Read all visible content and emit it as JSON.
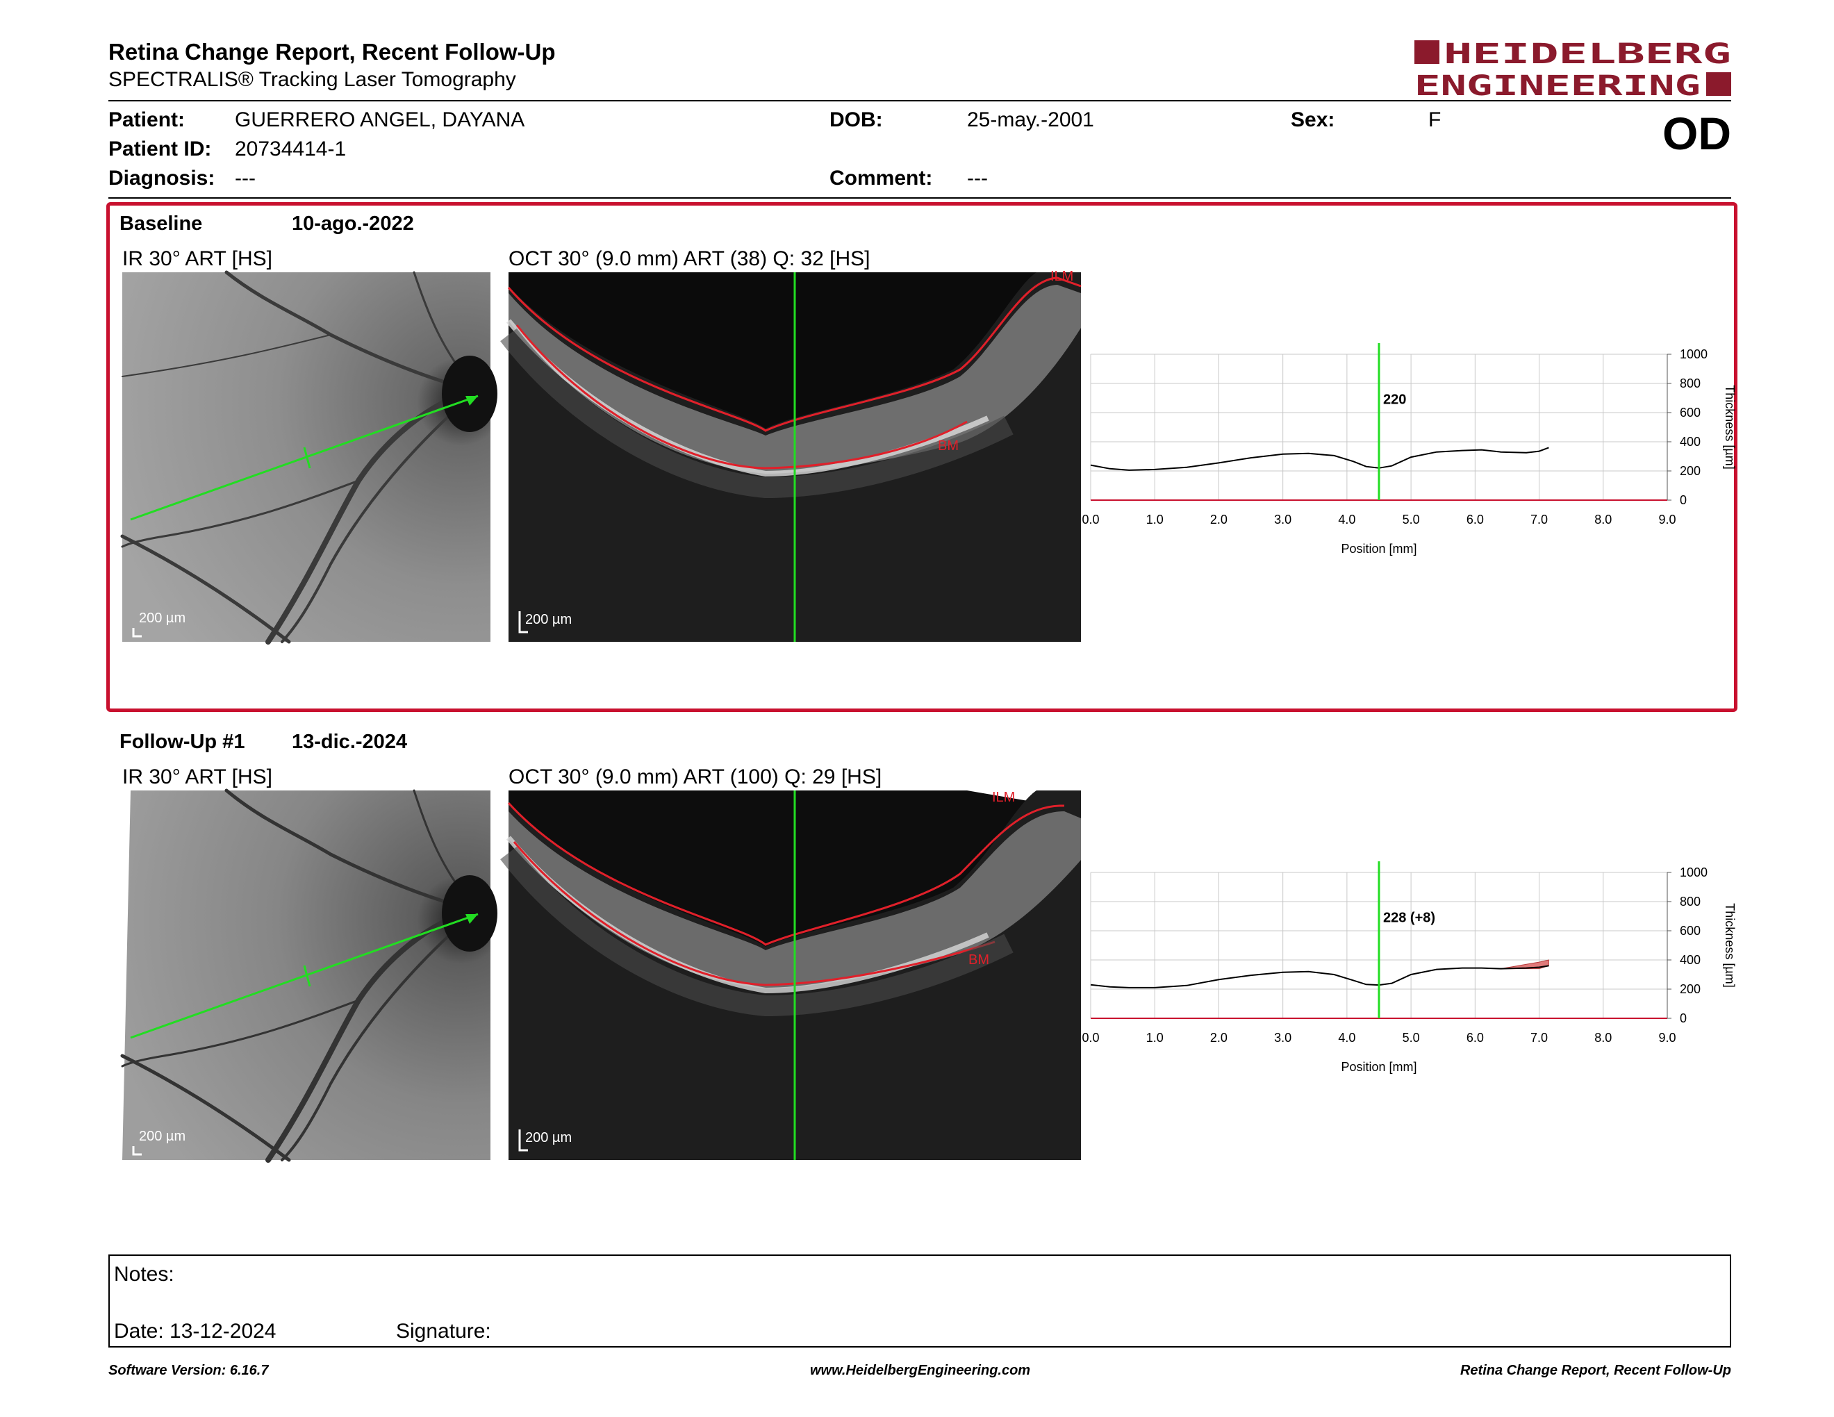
{
  "report": {
    "title": "Retina Change Report, Recent Follow-Up",
    "subtitle": "SPECTRALIS® Tracking Laser Tomography",
    "logo_line1": "HEIDELBERG",
    "logo_line2": "ENGINEERING",
    "logo_color": "#8b1a2c",
    "eye": "OD"
  },
  "patient": {
    "patient_label": "Patient:",
    "patient_value": "GUERRERO ANGEL, DAYANA",
    "id_label": "Patient ID:",
    "id_value": "20734414-1",
    "diagnosis_label": "Diagnosis:",
    "diagnosis_value": "---",
    "dob_label": "DOB:",
    "dob_value": "25-may.-2001",
    "comment_label": "Comment:",
    "comment_value": "---",
    "sex_label": "Sex:",
    "sex_value": "F"
  },
  "baseline": {
    "label": "Baseline",
    "date": "10-ago.-2022",
    "ir_caption": "IR 30° ART [HS]",
    "oct_caption": "OCT 30° (9.0 mm) ART (38) Q: 32 [HS]",
    "scale": "200 µm",
    "ilm": "ILM",
    "bm": "BM"
  },
  "followup": {
    "label": "Follow-Up #1",
    "date": "13-dic.-2024",
    "ir_caption": "IR 30° ART [HS]",
    "oct_caption": "OCT 30° (9.0 mm) ART (100) Q: 29 [HS]",
    "scale": "200 µm",
    "ilm": "ILM",
    "bm": "BM"
  },
  "colors": {
    "frame_red": "#c8102e",
    "scan_green": "#22dd22",
    "segment_red": "#e0202a"
  },
  "chart_data": [
    {
      "type": "line",
      "name": "baseline-thickness",
      "xlabel": "Position [mm]",
      "ylabel": "Thickness [µm]",
      "xlim": [
        0,
        9
      ],
      "ylim": [
        0,
        1000
      ],
      "x_ticks": [
        "0.0",
        "1.0",
        "2.0",
        "3.0",
        "4.0",
        "5.0",
        "6.0",
        "7.0",
        "8.0",
        "9.0"
      ],
      "y_ticks": [
        "0",
        "200",
        "400",
        "600",
        "800",
        "1000"
      ],
      "grid": true,
      "marker_x": 4.5,
      "marker_label": "220",
      "x": [
        0.0,
        0.3,
        0.6,
        1.0,
        1.5,
        2.0,
        2.5,
        3.0,
        3.4,
        3.8,
        4.1,
        4.3,
        4.5,
        4.7,
        5.0,
        5.4,
        5.8,
        6.1,
        6.4,
        6.8,
        7.0,
        7.15
      ],
      "y": [
        240,
        215,
        205,
        210,
        225,
        255,
        290,
        315,
        320,
        305,
        265,
        230,
        220,
        235,
        295,
        330,
        340,
        345,
        330,
        325,
        335,
        360
      ]
    },
    {
      "type": "line",
      "name": "followup-thickness",
      "xlabel": "Position [mm]",
      "ylabel": "Thickness [µm]",
      "xlim": [
        0,
        9
      ],
      "ylim": [
        0,
        1000
      ],
      "x_ticks": [
        "0.0",
        "1.0",
        "2.0",
        "3.0",
        "4.0",
        "5.0",
        "6.0",
        "7.0",
        "8.0",
        "9.0"
      ],
      "y_ticks": [
        "0",
        "200",
        "400",
        "600",
        "800",
        "1000"
      ],
      "grid": true,
      "marker_x": 4.5,
      "marker_label": "228 (+8)",
      "x": [
        0.0,
        0.3,
        0.6,
        1.0,
        1.5,
        2.0,
        2.5,
        3.0,
        3.4,
        3.8,
        4.1,
        4.3,
        4.5,
        4.7,
        5.0,
        5.4,
        5.8,
        6.1,
        6.4,
        6.8,
        7.0,
        7.15
      ],
      "y": [
        230,
        215,
        210,
        210,
        225,
        265,
        295,
        315,
        320,
        300,
        260,
        232,
        228,
        240,
        300,
        335,
        345,
        345,
        340,
        345,
        350,
        360
      ],
      "increase_x": [
        6.4,
        6.6,
        6.8,
        7.0,
        7.15
      ],
      "increase_y": [
        340,
        355,
        370,
        385,
        400
      ]
    }
  ],
  "notes": {
    "notes_label": "Notes:",
    "date_label": "Date: 13-12-2024",
    "signature_label": "Signature:"
  },
  "footer": {
    "software": "Software Version: 6.16.7",
    "website": "www.HeidelbergEngineering.com",
    "report_name": "Retina Change Report, Recent Follow-Up"
  }
}
